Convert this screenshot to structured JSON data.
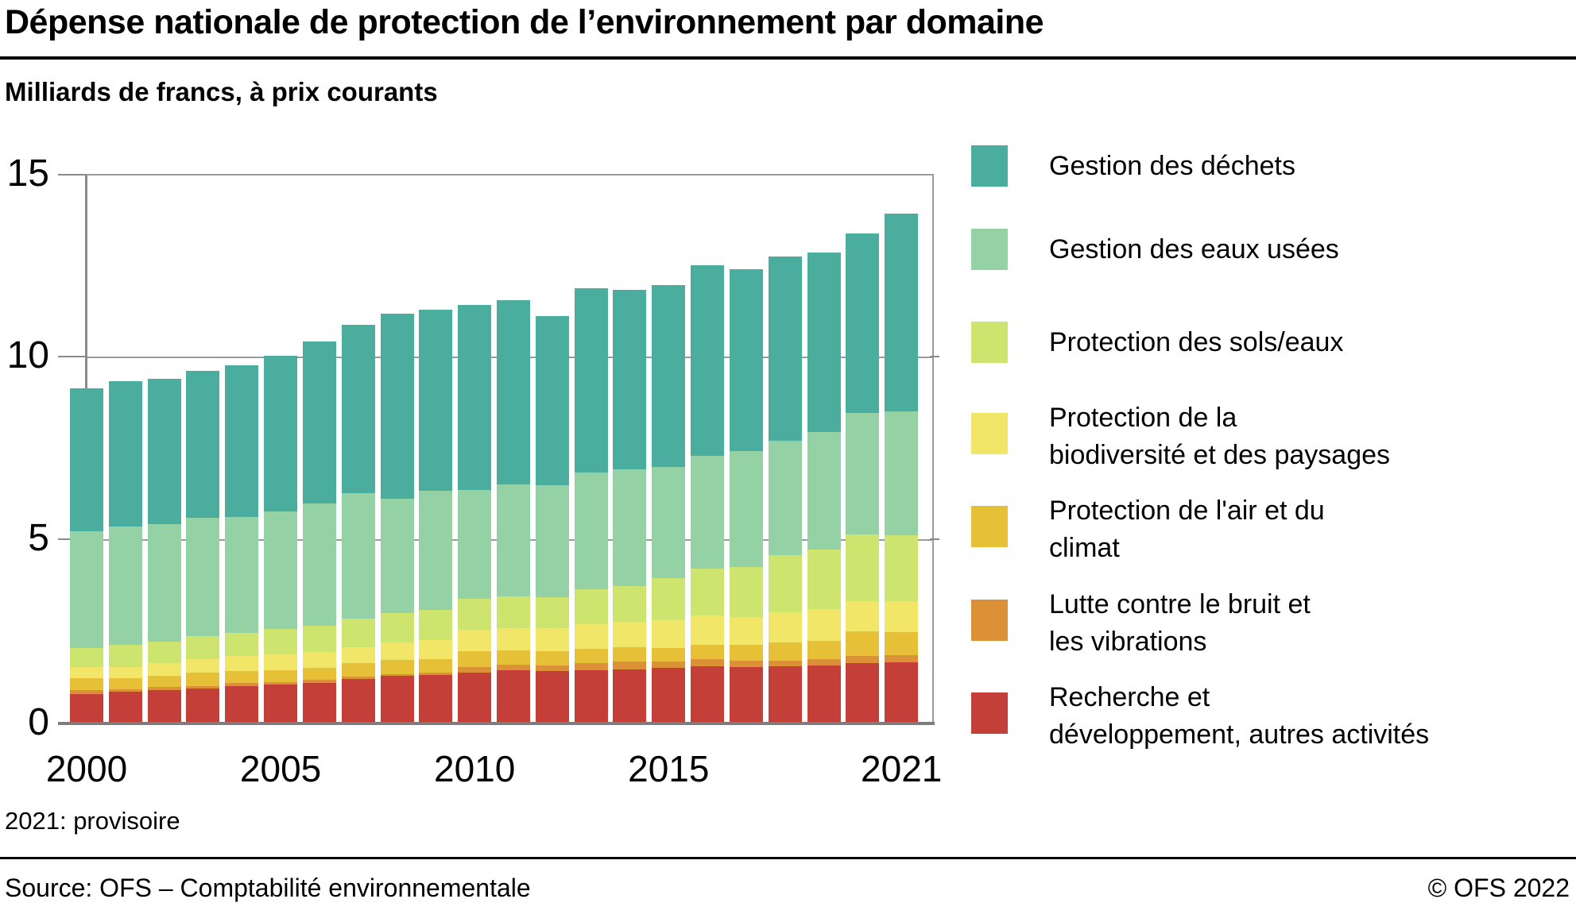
{
  "title": "Dépense nationale de protection de l’environnement par domaine",
  "subtitle": "Milliards de francs, à prix courants",
  "footnote": "2021: provisoire",
  "source": "Source: OFS – Comptabilité environnementale",
  "copyright": "© OFS 2022",
  "chart_data": {
    "type": "bar",
    "stacked": true,
    "title": "Dépense nationale de protection de l'environnement par domaine",
    "ylabel": "Milliards de francs, à prix courants",
    "ylim": [
      0,
      15
    ],
    "yticks": [
      0,
      5,
      10,
      15
    ],
    "grid": "horizontal",
    "legend_position": "right",
    "years": [
      2000,
      2001,
      2002,
      2003,
      2004,
      2005,
      2006,
      2007,
      2008,
      2009,
      2010,
      2011,
      2012,
      2013,
      2014,
      2015,
      2016,
      2017,
      2018,
      2019,
      2020,
      2021
    ],
    "x_ticks": [
      {
        "label": "2000",
        "year_index": 0
      },
      {
        "label": "2005",
        "year_index": 5
      },
      {
        "label": "2010",
        "year_index": 10
      },
      {
        "label": "2015",
        "year_index": 15
      },
      {
        "label": "2021",
        "year_index": 21
      }
    ],
    "series": [
      {
        "name": "Recherche et développement, autres activités",
        "color": "#C33F38",
        "values": [
          0.78,
          0.85,
          0.89,
          0.93,
          1.0,
          1.04,
          1.09,
          1.2,
          1.28,
          1.3,
          1.37,
          1.43,
          1.41,
          1.43,
          1.46,
          1.5,
          1.54,
          1.52,
          1.54,
          1.56,
          1.63,
          1.65
        ]
      },
      {
        "name": "Lutte contre le bruit et les vibrations",
        "color": "#DC9137",
        "values": [
          0.1,
          0.06,
          0.09,
          0.07,
          0.09,
          0.07,
          0.08,
          0.06,
          0.05,
          0.07,
          0.15,
          0.15,
          0.15,
          0.2,
          0.21,
          0.17,
          0.2,
          0.18,
          0.16,
          0.18,
          0.2,
          0.2
        ]
      },
      {
        "name": "Protection de l'air et du climat",
        "color": "#E6C138",
        "values": [
          0.33,
          0.31,
          0.3,
          0.37,
          0.32,
          0.32,
          0.33,
          0.37,
          0.39,
          0.37,
          0.44,
          0.4,
          0.4,
          0.39,
          0.4,
          0.37,
          0.39,
          0.42,
          0.5,
          0.5,
          0.67,
          0.63
        ]
      },
      {
        "name": "Protection de la biodiversité et des paysages",
        "color": "#F2E669",
        "values": [
          0.3,
          0.3,
          0.35,
          0.37,
          0.42,
          0.44,
          0.43,
          0.44,
          0.48,
          0.52,
          0.58,
          0.6,
          0.62,
          0.68,
          0.69,
          0.76,
          0.8,
          0.77,
          0.82,
          0.87,
          0.83,
          0.85
        ]
      },
      {
        "name": "Protection des sols/eaux",
        "color": "#CDE46E",
        "values": [
          0.52,
          0.61,
          0.59,
          0.63,
          0.63,
          0.7,
          0.72,
          0.78,
          0.8,
          0.83,
          0.85,
          0.87,
          0.85,
          0.95,
          0.98,
          1.16,
          1.27,
          1.36,
          1.57,
          1.62,
          1.81,
          1.8
        ]
      },
      {
        "name": "Gestion des eaux usées",
        "color": "#94D1A5",
        "values": [
          3.21,
          3.24,
          3.21,
          3.24,
          3.17,
          3.21,
          3.35,
          3.43,
          3.13,
          3.24,
          2.98,
          3.07,
          3.05,
          3.18,
          3.19,
          3.02,
          3.1,
          3.17,
          3.11,
          3.22,
          3.33,
          3.39
        ]
      },
      {
        "name": "Gestion des déchets",
        "color": "#4BAD9E",
        "values": [
          3.89,
          3.96,
          3.98,
          4.0,
          4.13,
          4.24,
          4.41,
          4.59,
          5.04,
          4.95,
          5.04,
          5.02,
          4.63,
          5.04,
          4.9,
          4.98,
          5.2,
          4.97,
          5.04,
          4.9,
          4.9,
          5.39
        ]
      }
    ],
    "totals": [
      9.13,
      9.33,
      9.41,
      9.61,
      9.76,
      10.02,
      10.41,
      10.87,
      11.17,
      11.28,
      11.41,
      11.54,
      11.11,
      11.87,
      11.83,
      11.96,
      12.5,
      12.39,
      12.74,
      12.85,
      13.37,
      13.91
    ],
    "legend": [
      {
        "color": "#4BAD9E",
        "lines": [
          "Gestion des déchets"
        ]
      },
      {
        "color": "#94D1A5",
        "lines": [
          "Gestion des eaux usées"
        ]
      },
      {
        "color": "#CDE46E",
        "lines": [
          "Protection des sols/eaux"
        ]
      },
      {
        "color": "#F2E669",
        "lines": [
          "Protection de la",
          "biodiversité et des paysages"
        ]
      },
      {
        "color": "#E6C138",
        "lines": [
          "Protection de l'air et du",
          "climat"
        ]
      },
      {
        "color": "#DC9137",
        "lines": [
          "Lutte contre le bruit et",
          "les vibrations"
        ]
      },
      {
        "color": "#C33F38",
        "lines": [
          "Recherche et",
          "développement, autres activités"
        ]
      }
    ],
    "y_axis_labels": [
      "15",
      "10",
      "5",
      "0"
    ]
  }
}
